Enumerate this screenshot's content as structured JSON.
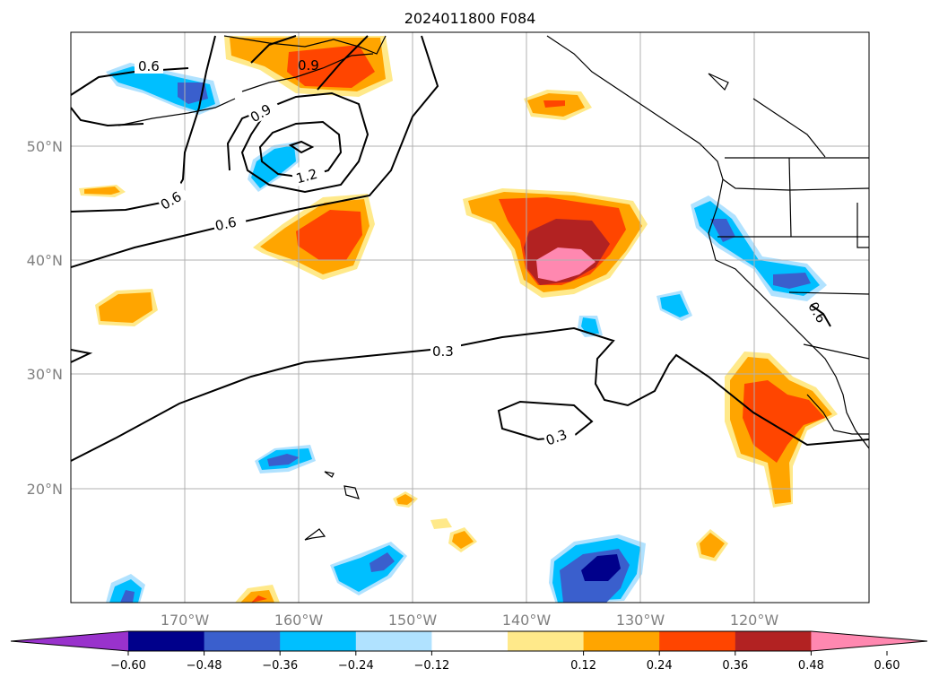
{
  "title": "2024011800 F084",
  "lon_ticks": [
    "170°W",
    "160°W",
    "150°W",
    "140°W",
    "130°W",
    "120°W"
  ],
  "lat_ticks": [
    "50°N",
    "40°N",
    "30°N",
    "20°N"
  ],
  "contour_labels": [
    "0.6",
    "0.9",
    "0.9",
    "1.2",
    "0.6",
    "0.6",
    "0.3",
    "0.3",
    "0.6"
  ],
  "colorbar": {
    "ticks": [
      "−0.60",
      "−0.48",
      "−0.36",
      "−0.24",
      "−0.12",
      "0.12",
      "0.24",
      "0.36",
      "0.48",
      "0.60"
    ],
    "colors": [
      "#9932cc",
      "#00008b",
      "#3a5fcd",
      "#00bfff",
      "#b0e2ff",
      "#ffffff",
      "#ffe98a",
      "#ffa500",
      "#ff4500",
      "#b22222",
      "#ff88b0"
    ],
    "extend": "both"
  },
  "map_extent": {
    "lon": [
      -180,
      -110
    ],
    "lat": [
      10,
      60
    ]
  },
  "grid": true
}
